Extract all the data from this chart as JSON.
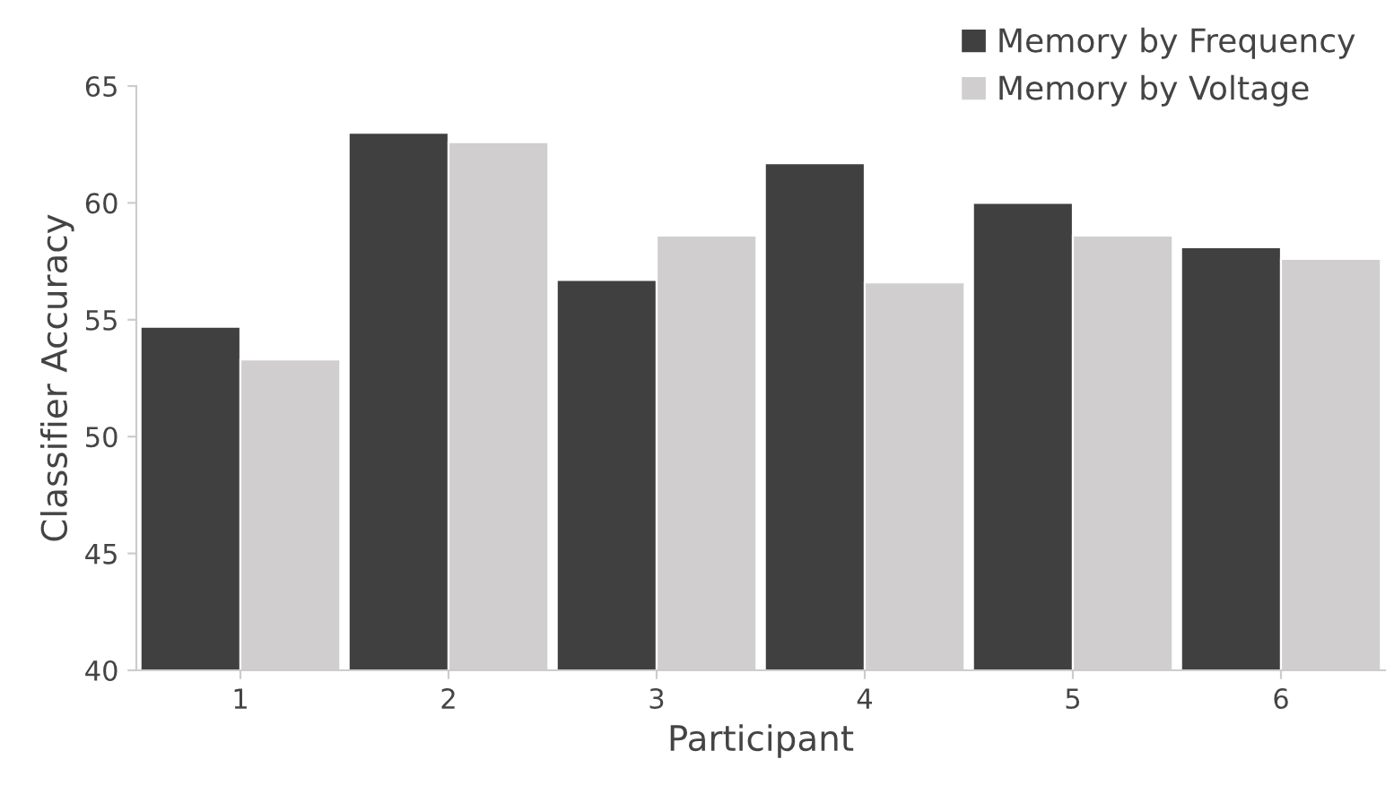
{
  "chart_data": {
    "type": "bar",
    "xlabel": "Participant",
    "ylabel": "Classifier Accuracy",
    "categories": [
      "1",
      "2",
      "3",
      "4",
      "5",
      "6"
    ],
    "series": [
      {
        "name": "Memory by Frequency",
        "color": "#404040",
        "values": [
          54.7,
          63.0,
          56.7,
          61.7,
          60.0,
          58.1
        ]
      },
      {
        "name": "Memory by Voltage",
        "color": "#d0cecf",
        "values": [
          53.3,
          62.6,
          58.6,
          56.6,
          58.6,
          57.6
        ]
      }
    ],
    "ylim": [
      40,
      65
    ],
    "yticks": [
      40,
      45,
      50,
      55,
      60,
      65
    ],
    "grid": false,
    "legend": "top right"
  }
}
